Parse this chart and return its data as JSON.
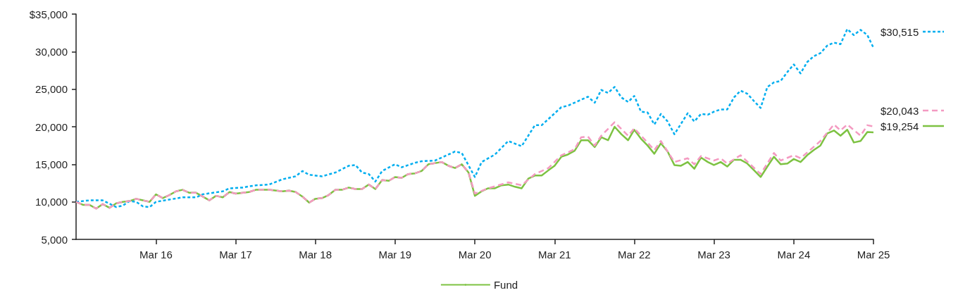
{
  "chart_data": {
    "type": "line",
    "xlim": [
      "2015-03",
      "2025-03"
    ],
    "xticks": [
      {
        "value": "2016-03",
        "label": "Mar 16"
      },
      {
        "value": "2017-03",
        "label": "Mar 17"
      },
      {
        "value": "2018-03",
        "label": "Mar 18"
      },
      {
        "value": "2019-03",
        "label": "Mar 19"
      },
      {
        "value": "2020-03",
        "label": "Mar 20"
      },
      {
        "value": "2021-03",
        "label": "Mar 21"
      },
      {
        "value": "2022-03",
        "label": "Mar 22"
      },
      {
        "value": "2023-03",
        "label": "Mar 23"
      },
      {
        "value": "2024-03",
        "label": "Mar 24"
      },
      {
        "value": "2025-03",
        "label": "Mar 25"
      }
    ],
    "ylim": [
      5000,
      35000
    ],
    "yticks": [
      {
        "value": 5000,
        "label": "5,000"
      },
      {
        "value": 10000,
        "label": "10,000"
      },
      {
        "value": 15000,
        "label": "15,000"
      },
      {
        "value": 20000,
        "label": "20,000"
      },
      {
        "value": 25000,
        "label": "25,000"
      },
      {
        "value": 30000,
        "label": "30,000"
      },
      {
        "value": 35000,
        "label": "$35,000"
      }
    ],
    "grid": false,
    "legend": "bottom",
    "marker": "none",
    "series": [
      {
        "name": "Fund",
        "color": "#7dc242",
        "line_style": "solid",
        "x": [
          "2015-03",
          "2015-04",
          "2015-05",
          "2015-06",
          "2015-07",
          "2015-08",
          "2015-09",
          "2015-10",
          "2015-11",
          "2015-12",
          "2016-01",
          "2016-02",
          "2016-03",
          "2016-04",
          "2016-05",
          "2016-06",
          "2016-07",
          "2016-08",
          "2016-09",
          "2016-10",
          "2016-11",
          "2016-12",
          "2017-01",
          "2017-02",
          "2017-03",
          "2017-05",
          "2017-06",
          "2017-08",
          "2017-10",
          "2017-11",
          "2017-12",
          "2018-01",
          "2018-02",
          "2018-03",
          "2018-04",
          "2018-05",
          "2018-06",
          "2018-07",
          "2018-08",
          "2018-09",
          "2018-10",
          "2018-11",
          "2018-12",
          "2019-01",
          "2019-02",
          "2019-03",
          "2019-04",
          "2019-05",
          "2019-06",
          "2019-07",
          "2019-08",
          "2019-10",
          "2019-11",
          "2019-12",
          "2020-01",
          "2020-02",
          "2020-03",
          "2020-04",
          "2020-05",
          "2020-06",
          "2020-07",
          "2020-08",
          "2020-09",
          "2020-10",
          "2020-11",
          "2020-12",
          "2021-01",
          "2021-02",
          "2021-03",
          "2021-04",
          "2021-05",
          "2021-06",
          "2021-07",
          "2021-08",
          "2021-09",
          "2021-10",
          "2021-11",
          "2021-12",
          "2022-01",
          "2022-02",
          "2022-03",
          "2022-04",
          "2022-05",
          "2022-06",
          "2022-07",
          "2022-08",
          "2022-09",
          "2022-10",
          "2022-11",
          "2022-12",
          "2023-01",
          "2023-02",
          "2023-03",
          "2023-04",
          "2023-05",
          "2023-06",
          "2023-07",
          "2023-08",
          "2023-09",
          "2023-10",
          "2023-11",
          "2023-12",
          "2024-01",
          "2024-02",
          "2024-03",
          "2024-04",
          "2024-05",
          "2024-06",
          "2024-07",
          "2024-08",
          "2024-09",
          "2024-10",
          "2024-11",
          "2024-12",
          "2025-01",
          "2025-02",
          "2025-03"
        ],
        "values": [
          10000,
          9600,
          9600,
          9100,
          9700,
          9200,
          9800,
          10000,
          10100,
          10400,
          10200,
          10000,
          11000,
          10500,
          10900,
          11400,
          11600,
          11200,
          11200,
          10700,
          10200,
          10800,
          10600,
          11300,
          11100,
          11300,
          11600,
          11600,
          11400,
          11500,
          11300,
          10700,
          9900,
          10400,
          10500,
          10900,
          11600,
          11600,
          11900,
          11700,
          11700,
          12300,
          11700,
          12900,
          12800,
          13300,
          13200,
          13700,
          13800,
          14100,
          15000,
          15300,
          14800,
          14500,
          15000,
          13900,
          10800,
          11400,
          11800,
          11800,
          12200,
          12300,
          12000,
          11800,
          13100,
          13500,
          13500,
          14200,
          14800,
          16000,
          16300,
          16800,
          18200,
          18200,
          17300,
          18600,
          18200,
          20000,
          19000,
          18200,
          19600,
          18400,
          17500,
          16400,
          17800,
          16700,
          14900,
          14800,
          15300,
          14400,
          15900,
          15300,
          14900,
          15300,
          14700,
          15600,
          15600,
          15100,
          14200,
          13300,
          14700,
          16000,
          15000,
          15100,
          15700,
          15300,
          16200,
          16900,
          17500,
          19100,
          19500,
          18800,
          19600,
          17900,
          18100,
          19300,
          19254
        ]
      },
      {
        "color": "#00aeef",
        "line_style": "dotted",
        "x": [
          "2015-03",
          "2015-05",
          "2015-07",
          "2015-09",
          "2015-10",
          "2015-11",
          "2015-12",
          "2016-01",
          "2016-02",
          "2016-03",
          "2016-05",
          "2016-07",
          "2016-09",
          "2016-10",
          "2017-01",
          "2017-02",
          "2017-04",
          "2017-06",
          "2017-08",
          "2017-10",
          "2017-12",
          "2018-01",
          "2018-02",
          "2018-04",
          "2018-06",
          "2018-08",
          "2018-09",
          "2018-10",
          "2018-11",
          "2018-12",
          "2019-01",
          "2019-03",
          "2019-04",
          "2019-06",
          "2019-07",
          "2019-09",
          "2019-11",
          "2019-12",
          "2020-01",
          "2020-03",
          "2020-04",
          "2020-06",
          "2020-08",
          "2020-10",
          "2020-12",
          "2021-01",
          "2021-04",
          "2021-05",
          "2021-08",
          "2021-09",
          "2021-10",
          "2021-11",
          "2021-12",
          "2022-01",
          "2022-02",
          "2022-03",
          "2022-04",
          "2022-05",
          "2022-06",
          "2022-07",
          "2022-08",
          "2022-09",
          "2022-11",
          "2022-12",
          "2023-01",
          "2023-02",
          "2023-03",
          "2023-04",
          "2023-05",
          "2023-06",
          "2023-07",
          "2023-08",
          "2023-09",
          "2023-10",
          "2023-11",
          "2023-12",
          "2024-01",
          "2024-02",
          "2024-03",
          "2024-04",
          "2024-05",
          "2024-06",
          "2024-07",
          "2024-08",
          "2024-09",
          "2024-10",
          "2024-11",
          "2024-12",
          "2025-01",
          "2025-02",
          "2025-03"
        ],
        "values": [
          10000,
          10200,
          10200,
          9300,
          9500,
          10100,
          10000,
          9400,
          9300,
          10000,
          10300,
          10600,
          10600,
          11000,
          11400,
          11800,
          11900,
          12200,
          12300,
          13000,
          13400,
          14100,
          13600,
          13400,
          13900,
          14800,
          14900,
          13900,
          13700,
          12700,
          14100,
          15000,
          14600,
          15200,
          15400,
          15500,
          16300,
          16700,
          16500,
          13300,
          15300,
          16300,
          18100,
          17400,
          20200,
          20200,
          22600,
          22800,
          24000,
          23200,
          24900,
          24500,
          25300,
          23900,
          23300,
          24100,
          22000,
          21900,
          20300,
          21700,
          20700,
          19000,
          21800,
          20700,
          21700,
          21600,
          22000,
          22300,
          22300,
          23900,
          24800,
          24400,
          23400,
          22500,
          25300,
          25900,
          26100,
          27300,
          28300,
          27100,
          28600,
          29400,
          29800,
          30800,
          31200,
          31000,
          33000,
          32200,
          32900,
          32200,
          30515
        ]
      },
      {
        "color": "#f49ac1",
        "line_style": "dashed",
        "x": [
          "2015-03",
          "2015-04",
          "2015-05",
          "2015-06",
          "2015-07",
          "2015-08",
          "2015-09",
          "2015-10",
          "2015-11",
          "2015-12",
          "2016-01",
          "2016-02",
          "2016-03",
          "2016-04",
          "2016-05",
          "2016-06",
          "2016-07",
          "2016-08",
          "2016-09",
          "2016-10",
          "2016-11",
          "2016-12",
          "2017-01",
          "2017-02",
          "2017-03",
          "2017-05",
          "2017-06",
          "2017-08",
          "2017-10",
          "2017-11",
          "2017-12",
          "2018-01",
          "2018-02",
          "2018-03",
          "2018-04",
          "2018-05",
          "2018-06",
          "2018-07",
          "2018-08",
          "2018-09",
          "2018-10",
          "2018-11",
          "2018-12",
          "2019-01",
          "2019-02",
          "2019-03",
          "2019-04",
          "2019-05",
          "2019-06",
          "2019-07",
          "2019-08",
          "2019-10",
          "2019-11",
          "2019-12",
          "2020-01",
          "2020-02",
          "2020-03",
          "2020-05",
          "2020-08",
          "2020-10",
          "2020-12",
          "2021-02",
          "2021-04",
          "2021-06",
          "2021-07",
          "2021-08",
          "2021-09",
          "2021-10",
          "2021-12",
          "2022-02",
          "2022-03",
          "2022-06",
          "2022-07",
          "2022-09",
          "2022-11",
          "2022-12",
          "2023-01",
          "2023-03",
          "2023-04",
          "2023-05",
          "2023-07",
          "2023-10",
          "2023-12",
          "2024-01",
          "2024-03",
          "2024-04",
          "2024-07",
          "2024-09",
          "2024-10",
          "2024-11",
          "2025-01",
          "2025-02",
          "2025-03"
        ],
        "values": [
          10000,
          9600,
          9600,
          9100,
          9700,
          9200,
          9800,
          10000,
          10100,
          10400,
          10200,
          10000,
          11000,
          10500,
          10900,
          11400,
          11600,
          11200,
          11200,
          10700,
          10200,
          10800,
          10600,
          11300,
          11100,
          11300,
          11600,
          11600,
          11400,
          11500,
          11300,
          10700,
          9900,
          10400,
          10500,
          10900,
          11600,
          11600,
          11900,
          11700,
          11700,
          12300,
          11700,
          12900,
          12800,
          13300,
          13200,
          13700,
          13800,
          14100,
          15000,
          15300,
          14800,
          14500,
          15000,
          13900,
          11100,
          11800,
          12600,
          12200,
          13700,
          14500,
          16200,
          17000,
          18600,
          18700,
          17500,
          18800,
          20600,
          18800,
          19800,
          16900,
          18100,
          15300,
          15800,
          15000,
          16100,
          15500,
          15800,
          15100,
          16200,
          13700,
          16500,
          15500,
          16200,
          15800,
          18100,
          20300,
          19500,
          20300,
          18800,
          20200,
          20043
        ]
      }
    ],
    "annotations": [
      {
        "text": "$30,515",
        "x": "2025-03",
        "y": 30515
      },
      {
        "text": "$20,043",
        "x": "2025-03",
        "y": 20043
      },
      {
        "text": "$19,254",
        "x": "2025-03",
        "y": 19254
      }
    ]
  }
}
